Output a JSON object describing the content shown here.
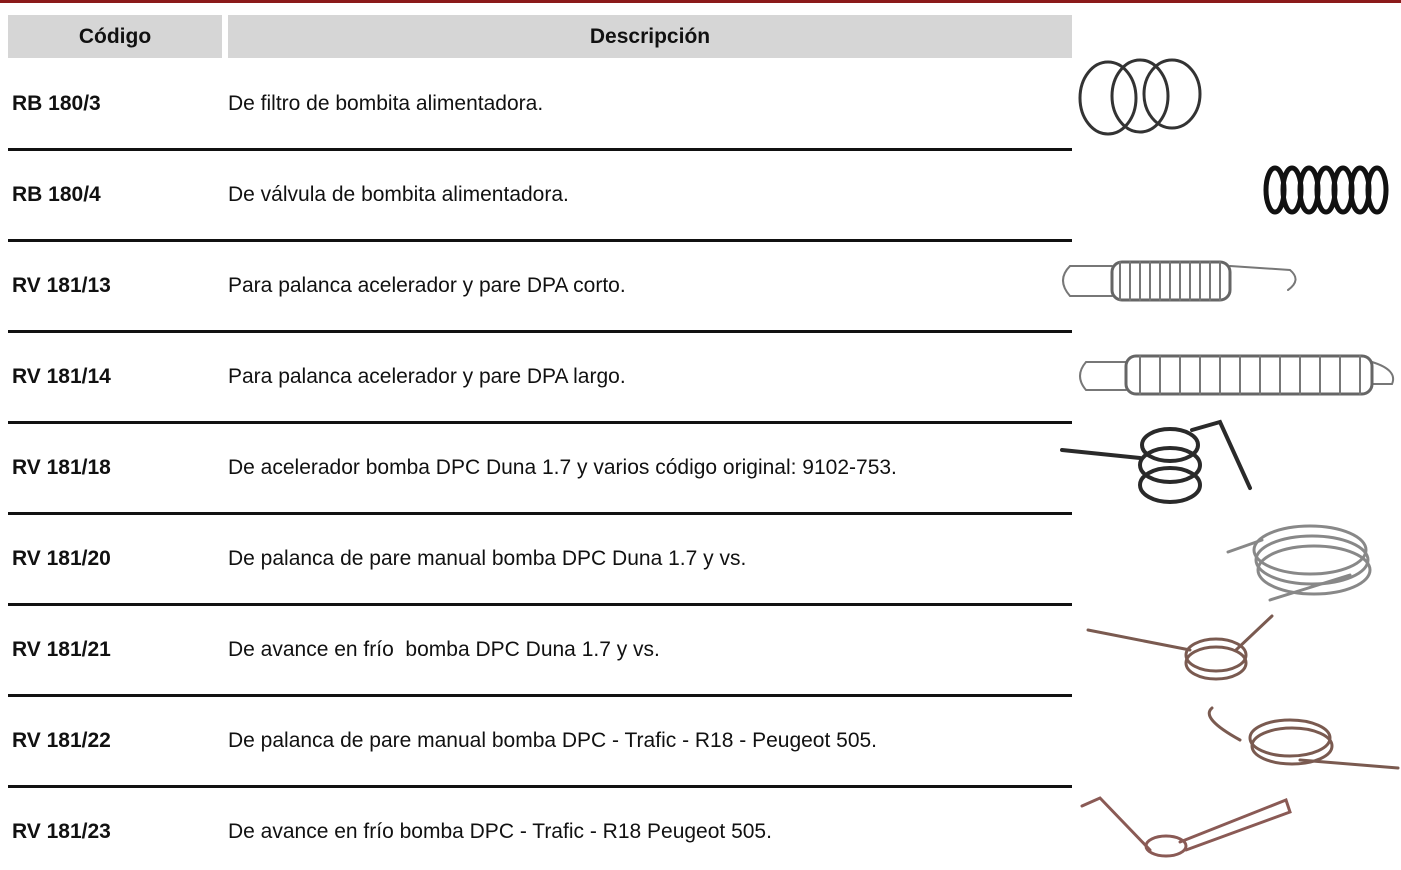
{
  "table": {
    "headers": [
      "Código",
      "Descripción"
    ],
    "rows": [
      [
        "RB 180/3",
        "De filtro de bombita alimentadora."
      ],
      [
        "RB 180/4",
        "De válvula de bombita alimentadora."
      ],
      [
        "RV 181/13",
        "Para palanca acelerador y pare DPA corto."
      ],
      [
        "RV 181/14",
        "Para palanca acelerador y pare DPA largo."
      ],
      [
        "RV 181/18",
        "De acelerador bomba DPC Duna 1.7 y varios código original: 9102-753."
      ],
      [
        "RV 181/20",
        "De palanca de pare manual bomba DPC Duna 1.7 y vs."
      ],
      [
        "RV 181/21",
        "De avance en frío  bomba DPC Duna 1.7 y vs."
      ],
      [
        "RV 181/22",
        "De palanca de pare manual bomba DPC - Trafic - R18 - Peugeot 505."
      ],
      [
        "RV 181/23",
        "De avance en frío bomba DPC - Trafic - R18 Peugeot 505."
      ]
    ]
  }
}
